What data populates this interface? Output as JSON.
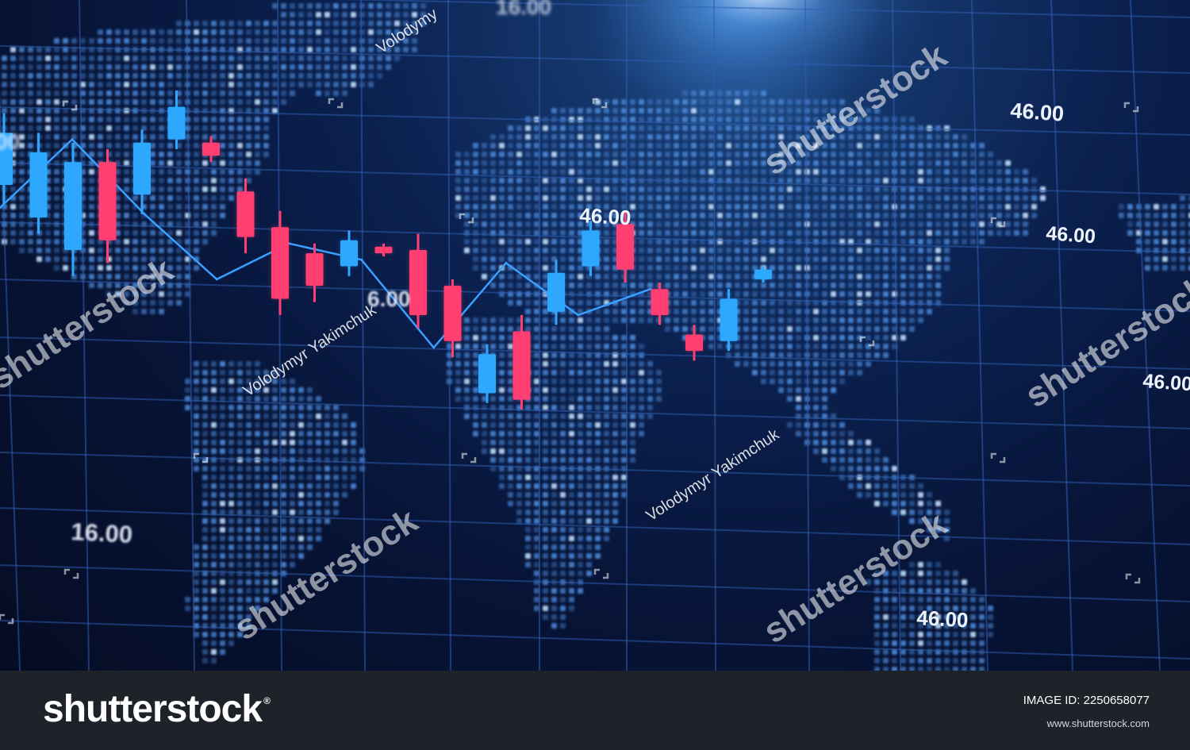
{
  "colors": {
    "bullish": "#2ea8ff",
    "bearish": "#ff3f72",
    "line": "#3aa0ff",
    "grid": "#2f5fb5",
    "map_dot": "#4f8fe0",
    "footer_bg": "#1e2229"
  },
  "chart_data": {
    "type": "candlestick",
    "title": "",
    "xlabel": "",
    "ylabel": "",
    "grid": true,
    "ylim": [
      0,
      100
    ],
    "candles": [
      {
        "open": 70,
        "close": 86,
        "low": 64,
        "high": 92,
        "dir": "up"
      },
      {
        "open": 60,
        "close": 80,
        "low": 55,
        "high": 86,
        "dir": "up"
      },
      {
        "open": 50,
        "close": 77,
        "low": 42,
        "high": 83,
        "dir": "up"
      },
      {
        "open": 77,
        "close": 53,
        "low": 46,
        "high": 81,
        "dir": "down"
      },
      {
        "open": 67,
        "close": 83,
        "low": 61,
        "high": 87,
        "dir": "up"
      },
      {
        "open": 84,
        "close": 94,
        "low": 81,
        "high": 99,
        "dir": "up"
      },
      {
        "open": 83,
        "close": 79,
        "low": 77,
        "high": 85,
        "dir": "down"
      },
      {
        "open": 68,
        "close": 54,
        "low": 49,
        "high": 72,
        "dir": "down"
      },
      {
        "open": 57,
        "close": 35,
        "low": 30,
        "high": 62,
        "dir": "down"
      },
      {
        "open": 49,
        "close": 39,
        "low": 34,
        "high": 52,
        "dir": "down"
      },
      {
        "open": 45,
        "close": 53,
        "low": 42,
        "high": 56,
        "dir": "up"
      },
      {
        "open": 51,
        "close": 49,
        "low": 48,
        "high": 52,
        "dir": "down"
      },
      {
        "open": 50,
        "close": 30,
        "low": 26,
        "high": 55,
        "dir": "down"
      },
      {
        "open": 39,
        "close": 22,
        "low": 17,
        "high": 41,
        "dir": "down"
      },
      {
        "open": 6,
        "close": 18,
        "low": 3,
        "high": 21,
        "dir": "up"
      },
      {
        "open": 25,
        "close": 4,
        "low": 1,
        "high": 30,
        "dir": "down"
      },
      {
        "open": 31,
        "close": 43,
        "low": 27,
        "high": 47,
        "dir": "up"
      },
      {
        "open": 45,
        "close": 56,
        "low": 42,
        "high": 59,
        "dir": "up"
      },
      {
        "open": 58,
        "close": 44,
        "low": 40,
        "high": 62,
        "dir": "down"
      },
      {
        "open": 38,
        "close": 30,
        "low": 27,
        "high": 40,
        "dir": "down"
      },
      {
        "open": 24,
        "close": 19,
        "low": 16,
        "high": 27,
        "dir": "down"
      },
      {
        "open": 22,
        "close": 35,
        "low": 19,
        "high": 38,
        "dir": "up"
      },
      {
        "open": 41,
        "close": 44,
        "low": 40,
        "high": 45,
        "dir": "up"
      }
    ],
    "trend_line": [
      63,
      84,
      61,
      41,
      52,
      47,
      20,
      46,
      30,
      38
    ]
  },
  "price_labels": [
    "16.00",
    "00",
    "46.00",
    "46.00",
    "46.00",
    "6.00",
    "16.00",
    "46.00",
    "46.00"
  ],
  "watermarks": {
    "brand": "shutterstock",
    "author": "Volodymyr Yakimchuk",
    "author_partial": "Volodymy"
  },
  "footer": {
    "logo": "shutterstock",
    "logo_mark": "®",
    "image_id": "IMAGE ID: 2250658077",
    "site": "www.shutterstock.com"
  }
}
